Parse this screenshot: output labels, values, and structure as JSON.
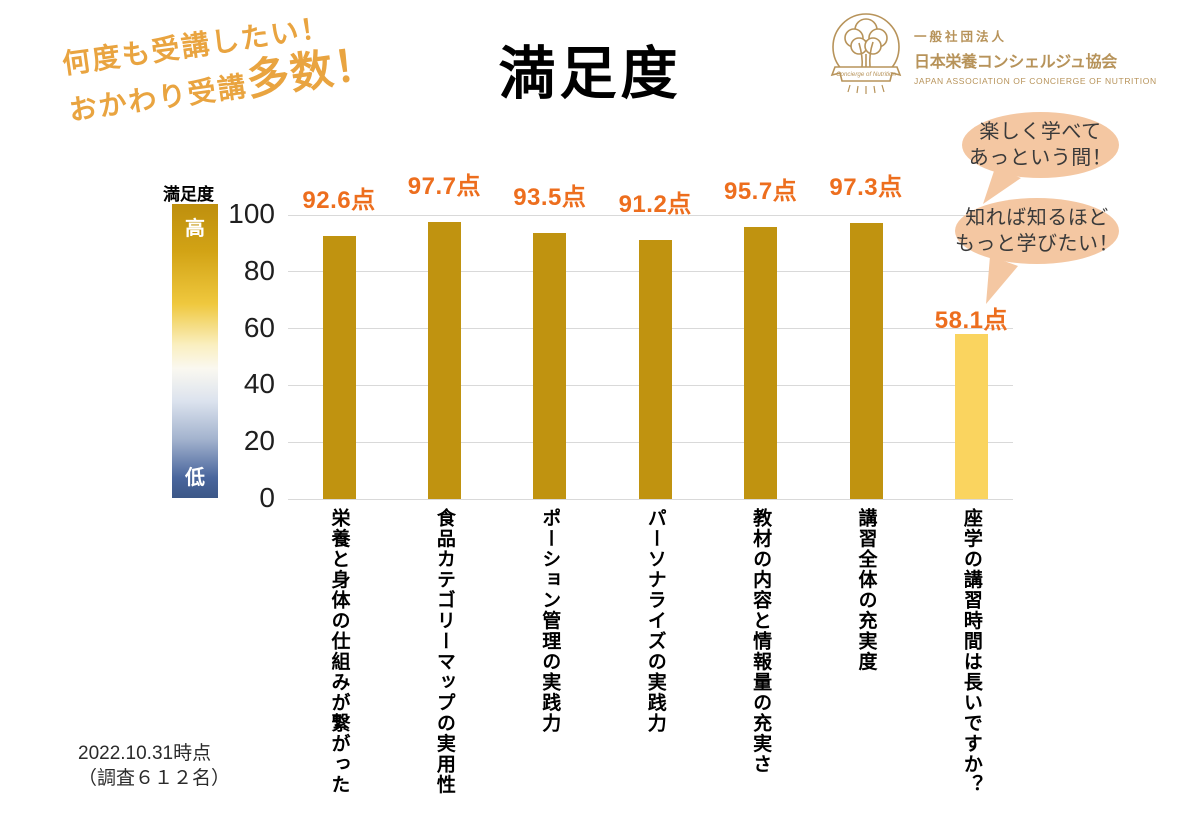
{
  "title": "満足度",
  "tagline": {
    "line1": "何度も受講したい！",
    "line2_prefix": "おかわり受講",
    "line2_emphasis": "多数！"
  },
  "logo": {
    "org_type": "一般社団法人",
    "org_name": "日本栄養コンシェルジュ協会",
    "org_name_en": "JAPAN ASSOCIATION OF CONCIERGE OF NUTRITION",
    "banner_text": "Concierge of Nutrition"
  },
  "bubbles": [
    {
      "line1": "楽しく学べて",
      "line2": "あっという間！"
    },
    {
      "line1": "知れば知るほど",
      "line2": "もっと学びたい！"
    }
  ],
  "legend": {
    "title": "満足度",
    "high": "高",
    "low": "低"
  },
  "footnote": {
    "line1": "2022.10.31時点",
    "line2": "（調査６１２名）"
  },
  "colors": {
    "tagline": "#E9A440",
    "logo": "#B7935A",
    "bubble": "#F4C7A2",
    "bubble-text": "#3A3A3A",
    "grid": "#D9D9D9",
    "grad0": "#BE8F0E",
    "grad1": "#D2A315",
    "grad2": "#EFC83E",
    "grad3": "#FAEFC0",
    "grad4": "#FAF8F0",
    "grad5": "#DCE3EE",
    "grad6": "#A3B3CE",
    "grad7": "#4A669D",
    "grad8": "#3C5787"
  },
  "chart_data": {
    "type": "bar",
    "title": "満足度",
    "categories": [
      "栄養と身体の仕組みが繋がった",
      "食品カテゴリーマップの実用性",
      "ポーション管理の実践力",
      "パーソナライズの実践力",
      "教材の内容と情報量の充実さ",
      "講習全体の充実度",
      "座学の講習時間は長いですか？"
    ],
    "values": [
      92.6,
      97.7,
      93.5,
      91.2,
      95.7,
      97.3,
      58.1
    ],
    "value_labels": [
      "92.6点",
      "97.7点",
      "93.5点",
      "91.2点",
      "95.7点",
      "97.3点",
      "58.1点"
    ],
    "bar_colors": [
      "#C09310",
      "#C09310",
      "#C09310",
      "#C09310",
      "#C09310",
      "#C09310",
      "#FAD45F"
    ],
    "value_label_color": "#ED6E1E",
    "xlabel": "",
    "ylabel": "満足度",
    "ylim": [
      0,
      100
    ],
    "yticks": [
      0,
      20,
      40,
      60,
      80,
      100
    ],
    "grid": "horizontal",
    "legend_note": "gradient bar at left, 高 (top, gold) to 低 (bottom, blue)"
  }
}
